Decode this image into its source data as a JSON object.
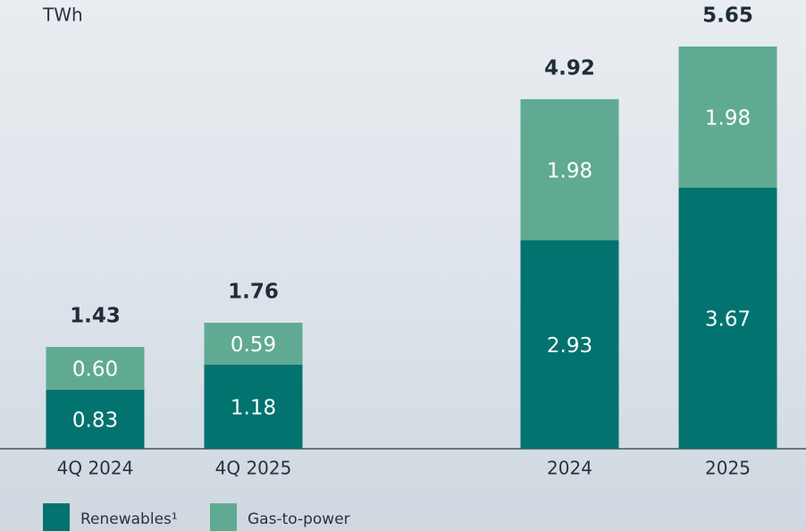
{
  "chart_data": {
    "type": "stacked-bar",
    "unit_label": "TWh",
    "categories": [
      "4Q 2024",
      "4Q 2025",
      null,
      "2024",
      "2025"
    ],
    "series": [
      {
        "name": "Renewables¹",
        "color": "#037370",
        "values": [
          0.83,
          1.18,
          null,
          2.93,
          3.67
        ]
      },
      {
        "name": "Gas-to-power",
        "color": "#60aa93",
        "values": [
          0.6,
          0.59,
          null,
          1.98,
          1.98
        ]
      }
    ],
    "value_labels": [
      [
        "0.83",
        "1.18",
        null,
        "2.93",
        "3.67"
      ],
      [
        "0.60",
        "0.59",
        null,
        "1.98",
        "1.98"
      ]
    ],
    "totals": [
      1.43,
      1.76,
      null,
      4.92,
      5.65
    ],
    "ylim": [
      0,
      5.65
    ]
  }
}
